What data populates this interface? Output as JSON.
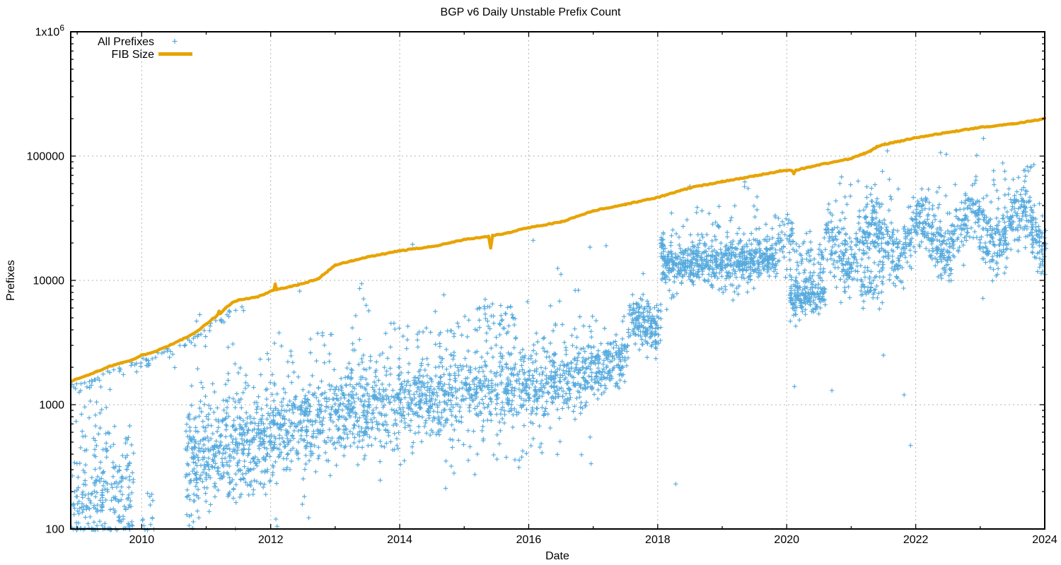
{
  "chart_data": {
    "type": "scatter",
    "title": "BGP v6 Daily Unstable Prefix Count",
    "xlabel": "Date",
    "ylabel": "Prefixes",
    "x_range": [
      2008.9,
      2024.0
    ],
    "y_scale": "log10",
    "y_range": [
      100,
      1000000
    ],
    "grid": "dashed major gridlines",
    "legend_position": "top-left inside plot, labels right-aligned",
    "x_ticks": {
      "major": [
        {
          "v": 2010,
          "label": "2010"
        },
        {
          "v": 2012,
          "label": "2012"
        },
        {
          "v": 2014,
          "label": "2014"
        },
        {
          "v": 2016,
          "label": "2016"
        },
        {
          "v": 2018,
          "label": "2018"
        },
        {
          "v": 2020,
          "label": "2020"
        },
        {
          "v": 2022,
          "label": "2022"
        },
        {
          "v": 2024,
          "label": "2024"
        }
      ],
      "minor": [
        2009,
        2011,
        2013,
        2015,
        2017,
        2019,
        2021,
        2023
      ]
    },
    "y_ticks": {
      "major": [
        {
          "v": 100,
          "label": "100"
        },
        {
          "v": 1000,
          "label": "1000"
        },
        {
          "v": 10000,
          "label": "10000"
        },
        {
          "v": 100000,
          "label": "100000"
        },
        {
          "v": 1000000,
          "label": "1x10",
          "exp": "6"
        }
      ],
      "minor_multiples_per_decade": [
        2,
        3,
        4,
        5,
        6,
        7,
        8,
        9
      ]
    },
    "colors": {
      "scatter": "#56AADE",
      "line": "#E7A404",
      "grid": "#b3b3b3",
      "border": "#000000"
    },
    "series": {
      "all_prefixes": {
        "name": "All Prefixes",
        "marker": "plus",
        "color": "#56AADE",
        "description": "daily unstable v6 prefix counts; dense noisy bands read from plot, encoded as log10 distribution segments",
        "distribution_segments": [
          {
            "t0": 2008.92,
            "t1": 2009.88,
            "n": 240,
            "c0": 2.22,
            "c1": 2.3,
            "s": 0.22
          },
          {
            "t0": 2008.92,
            "t1": 2011.6,
            "n": 85,
            "hug": true
          },
          {
            "t0": 2009.0,
            "t1": 2009.7,
            "n": 22,
            "c0": 2.75,
            "c1": 2.8,
            "s": 0.12
          },
          {
            "t0": 2010.0,
            "t1": 2010.2,
            "n": 14,
            "c0": 2.08,
            "c1": 2.15,
            "s": 0.1
          },
          {
            "t0": 2010.68,
            "t1": 2012.0,
            "n": 470,
            "c0": 2.5,
            "c1": 2.72,
            "s": 0.2
          },
          {
            "t0": 2010.75,
            "t1": 2012.0,
            "n": 40,
            "c0": 3.15,
            "c1": 3.3,
            "s": 0.18
          },
          {
            "t0": 2012.0,
            "t1": 2014.0,
            "n": 580,
            "c0": 2.8,
            "c1": 3.02,
            "s": 0.18
          },
          {
            "t0": 2012.0,
            "t1": 2014.0,
            "n": 55,
            "c0": 3.3,
            "c1": 3.45,
            "s": 0.18
          },
          {
            "t0": 2014.0,
            "t1": 2016.0,
            "n": 560,
            "c0": 3.02,
            "c1": 3.14,
            "s": 0.16
          },
          {
            "t0": 2014.0,
            "t1": 2016.0,
            "n": 50,
            "c0": 3.48,
            "c1": 3.55,
            "s": 0.15
          },
          {
            "t0": 2015.2,
            "t1": 2015.8,
            "n": 35,
            "c0": 3.72,
            "c1": 3.72,
            "s": 0.07
          },
          {
            "t0": 2012.0,
            "t1": 2017.0,
            "n": 45,
            "c0": 2.52,
            "c1": 2.62,
            "s": 0.12
          },
          {
            "t0": 2016.0,
            "t1": 2017.0,
            "n": 290,
            "c0": 3.14,
            "c1": 3.26,
            "s": 0.15
          },
          {
            "t0": 2016.0,
            "t1": 2017.0,
            "n": 18,
            "c0": 3.6,
            "c1": 3.7,
            "s": 0.15
          },
          {
            "t0": 2017.0,
            "t1": 2017.55,
            "n": 160,
            "c0": 3.28,
            "c1": 3.42,
            "s": 0.13
          },
          {
            "t0": 2017.55,
            "t1": 2018.05,
            "n": 170,
            "c0": 3.72,
            "c1": 3.58,
            "s": 0.1
          },
          {
            "t0": 2018.05,
            "t1": 2019.85,
            "n": 620,
            "c0": 4.12,
            "c1": 4.18,
            "s": 0.085
          },
          {
            "t0": 2018.1,
            "t1": 2019.85,
            "n": 48,
            "c0": 4.38,
            "c1": 4.46,
            "s": 0.12
          },
          {
            "t0": 2018.05,
            "t1": 2018.09,
            "n": 22,
            "c0": 4.26,
            "c1": 4.3,
            "s": 0.05
          },
          {
            "t0": 2018.1,
            "t1": 2019.85,
            "n": 14,
            "c0": 3.9,
            "c1": 3.93,
            "s": 0.07
          },
          {
            "t0": 2019.86,
            "t1": 2020.1,
            "n": 50,
            "c0": 4.3,
            "c1": 4.35,
            "s": 0.13
          },
          {
            "t0": 2020.05,
            "t1": 2020.6,
            "n": 190,
            "c0": 3.84,
            "c1": 3.9,
            "s": 0.09
          },
          {
            "t0": 2020.1,
            "t1": 2020.6,
            "n": 45,
            "c0": 4.18,
            "c1": 4.22,
            "s": 0.08
          },
          {
            "t0": 2020.6,
            "t1": 2024.02,
            "n": 1000,
            "c0": 4.28,
            "c1": 4.44,
            "s": 0.13,
            "wave": [
              0.15,
              1.3,
              2.0
            ]
          },
          {
            "t0": 2020.7,
            "t1": 2024.02,
            "n": 50,
            "c0": 4.68,
            "c1": 4.8,
            "s": 0.12
          },
          {
            "t0": 2021.15,
            "t1": 2021.5,
            "n": 60,
            "c0": 3.95,
            "c1": 4.0,
            "s": 0.09
          }
        ],
        "outlier_points": [
          [
            2009.3,
            1050
          ],
          [
            2009.45,
            950
          ],
          [
            2010.85,
            4700
          ],
          [
            2010.9,
            5300
          ],
          [
            2012.08,
            120
          ],
          [
            2012.1,
            105
          ],
          [
            2012.49,
            158
          ],
          [
            2012.59,
            123
          ],
          [
            2012.42,
            9300
          ],
          [
            2012.45,
            8200
          ],
          [
            2013.38,
            8600
          ],
          [
            2013.41,
            9400
          ],
          [
            2013.44,
            7100
          ],
          [
            2013.48,
            6300
          ],
          [
            2013.52,
            5700
          ],
          [
            2014.2,
            19500
          ],
          [
            2016.07,
            21000
          ],
          [
            2016.45,
            12500
          ],
          [
            2016.5,
            11200
          ],
          [
            2016.95,
            18500
          ],
          [
            2017.2,
            19000
          ],
          [
            2018.28,
            230
          ],
          [
            2018.5,
            57000
          ],
          [
            2019.35,
            62000
          ],
          [
            2019.4,
            55000
          ],
          [
            2020.12,
            1400
          ],
          [
            2020.7,
            1300
          ],
          [
            2020.85,
            68000
          ],
          [
            2021.5,
            2500
          ],
          [
            2021.52,
            125000
          ],
          [
            2021.56,
            110000
          ],
          [
            2021.82,
            1200
          ],
          [
            2021.92,
            470
          ],
          [
            2023.35,
            88000
          ]
        ]
      },
      "fib_size": {
        "name": "FIB Size",
        "color": "#E7A404",
        "points": [
          [
            2008.92,
            1560
          ],
          [
            2009.1,
            1680
          ],
          [
            2009.3,
            1840
          ],
          [
            2009.5,
            2040
          ],
          [
            2009.7,
            2180
          ],
          [
            2009.9,
            2350
          ],
          [
            2010.0,
            2500
          ],
          [
            2010.2,
            2680
          ],
          [
            2010.4,
            2950
          ],
          [
            2010.6,
            3300
          ],
          [
            2010.8,
            3700
          ],
          [
            2011.0,
            4450
          ],
          [
            2011.1,
            4900
          ],
          [
            2011.18,
            5300
          ],
          [
            2011.2,
            5650
          ],
          [
            2011.22,
            5400
          ],
          [
            2011.3,
            6000
          ],
          [
            2011.4,
            6600
          ],
          [
            2011.5,
            6950
          ],
          [
            2011.65,
            7150
          ],
          [
            2011.8,
            7350
          ],
          [
            2012.0,
            8200
          ],
          [
            2012.05,
            8400
          ],
          [
            2012.07,
            9400
          ],
          [
            2012.09,
            8450
          ],
          [
            2012.3,
            8900
          ],
          [
            2012.5,
            9400
          ],
          [
            2012.75,
            10400
          ],
          [
            2013.0,
            13300
          ],
          [
            2013.25,
            14300
          ],
          [
            2013.5,
            15400
          ],
          [
            2013.75,
            16300
          ],
          [
            2014.0,
            17300
          ],
          [
            2014.5,
            18700
          ],
          [
            2015.0,
            21300
          ],
          [
            2015.38,
            22600
          ],
          [
            2015.41,
            18200
          ],
          [
            2015.44,
            22900
          ],
          [
            2015.7,
            24300
          ],
          [
            2016.0,
            26600
          ],
          [
            2016.5,
            29500
          ],
          [
            2017.0,
            36300
          ],
          [
            2017.5,
            40900
          ],
          [
            2018.0,
            46500
          ],
          [
            2018.5,
            55500
          ],
          [
            2019.0,
            62500
          ],
          [
            2019.5,
            69000
          ],
          [
            2019.9,
            76000
          ],
          [
            2020.08,
            76500
          ],
          [
            2020.11,
            72500
          ],
          [
            2020.14,
            77000
          ],
          [
            2020.5,
            85000
          ],
          [
            2021.0,
            95500
          ],
          [
            2021.2,
            105000
          ],
          [
            2021.3,
            110000
          ],
          [
            2021.4,
            119000
          ],
          [
            2021.6,
            127000
          ],
          [
            2021.8,
            133000
          ],
          [
            2022.0,
            141000
          ],
          [
            2022.5,
            155000
          ],
          [
            2023.0,
            170000
          ],
          [
            2023.5,
            182000
          ],
          [
            2023.8,
            192000
          ],
          [
            2024.0,
            200000
          ]
        ]
      }
    }
  }
}
